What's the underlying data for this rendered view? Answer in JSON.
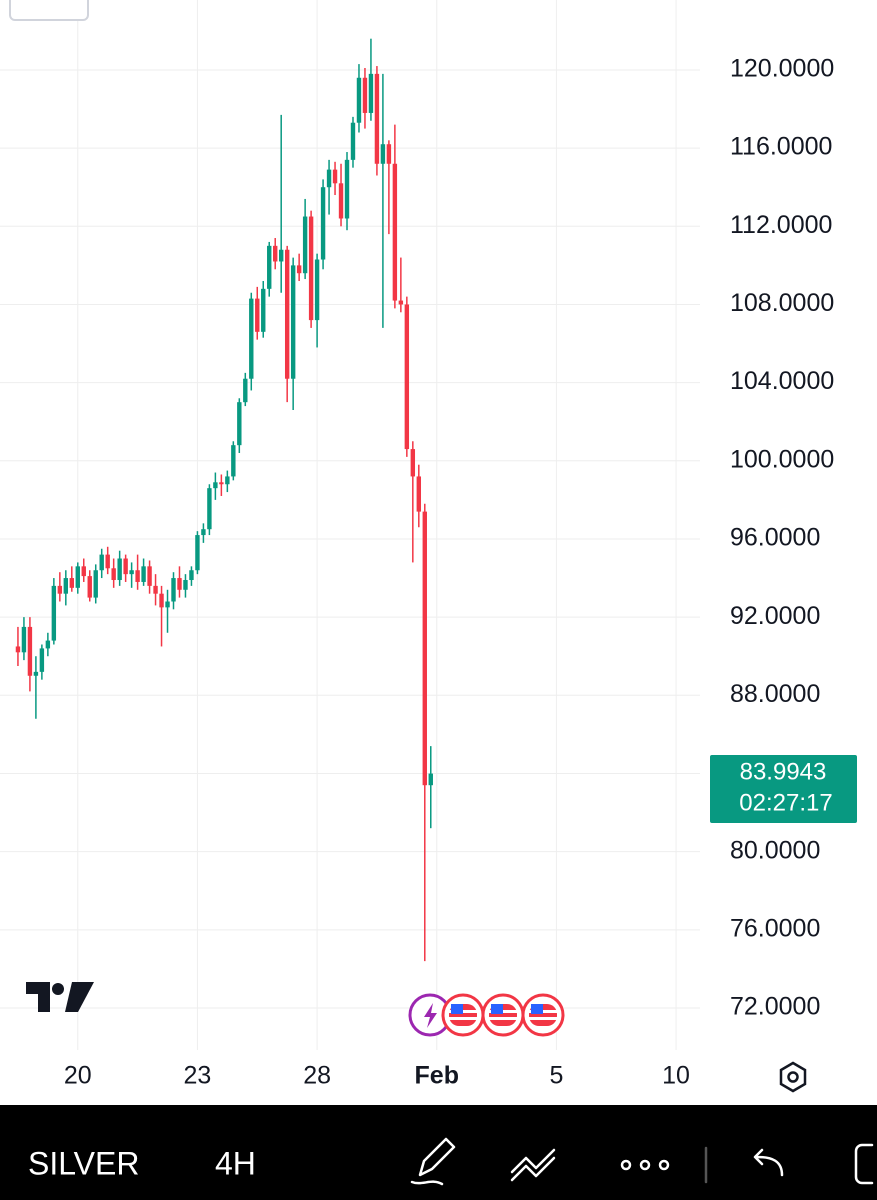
{
  "chart_data": {
    "type": "candlestick",
    "up_color": "#089981",
    "down_color": "#f23645",
    "x": [
      0,
      1,
      2,
      3,
      4,
      5,
      6,
      7,
      8,
      9,
      10,
      11,
      12,
      13,
      14,
      15,
      16,
      17,
      18,
      19,
      20,
      21,
      22,
      23,
      24,
      25,
      26,
      27,
      28,
      29,
      30,
      31,
      32,
      33,
      34,
      35,
      36,
      37,
      38,
      39,
      40,
      41,
      42,
      43,
      44,
      45,
      46,
      47,
      48,
      49,
      50,
      51,
      52,
      53,
      54,
      55,
      56,
      57,
      58,
      59,
      60,
      61,
      62,
      63,
      64,
      65,
      66,
      67,
      68,
      69
    ],
    "open": [
      90.5,
      90.2,
      91.5,
      89,
      89.2,
      90.4,
      90.8,
      93.6,
      93.2,
      94,
      93.5,
      94.6,
      94.1,
      93,
      94.4,
      95.2,
      94.5,
      93.9,
      95,
      94.2,
      94.4,
      93.8,
      94.6,
      93.6,
      93.2,
      92.5,
      92.8,
      94,
      93.4,
      93.9,
      94.4,
      96.2,
      96.5,
      98.6,
      98.9,
      98.8,
      99.2,
      100.8,
      103,
      104.2,
      108.3,
      106.6,
      108.8,
      111,
      110.2,
      110.8,
      104.2,
      110,
      109.6,
      112.5,
      107.2,
      110.3,
      114,
      114.9,
      114.2,
      112.4,
      115.4,
      117.3,
      119.6,
      117.8,
      119.8,
      115.2,
      116.2,
      115.2,
      108.2,
      108,
      100.6,
      99.2,
      97.4,
      83.4
    ],
    "high": [
      91.5,
      92,
      92,
      90,
      90.6,
      91.2,
      94,
      94.3,
      94.4,
      94.6,
      94.8,
      95,
      94.4,
      94.7,
      95.5,
      95.6,
      95,
      95.4,
      95.2,
      94.8,
      95.2,
      95,
      94.9,
      94.2,
      93.6,
      93.4,
      94.3,
      94.6,
      94.2,
      94.6,
      96.4,
      96.8,
      98.8,
      99.4,
      99.3,
      99.5,
      101,
      103.2,
      104.5,
      108.6,
      108.9,
      109.2,
      111.2,
      111.4,
      117.7,
      111,
      110.4,
      110.6,
      113.4,
      112.8,
      110.6,
      114.4,
      115.4,
      115.3,
      115.2,
      115.8,
      117.6,
      120.3,
      120.1,
      121.6,
      120.2,
      119.8,
      116.4,
      117.2,
      110.4,
      108.4,
      101,
      99.8,
      97.8,
      85.4
    ],
    "low": [
      89.5,
      89.8,
      88.2,
      86.8,
      88.8,
      90,
      90.6,
      92.8,
      92.6,
      93.3,
      93.2,
      93.8,
      92.8,
      92.7,
      94,
      94.2,
      93.5,
      93.6,
      93.8,
      93.5,
      93.4,
      93.6,
      93.2,
      92.6,
      90.5,
      91.2,
      92.4,
      93,
      93,
      93.6,
      94.2,
      95.8,
      96.2,
      98,
      98.2,
      98.4,
      99,
      100.4,
      102.8,
      103.6,
      106.2,
      106.3,
      108.4,
      109.8,
      108.6,
      103,
      102.6,
      109.2,
      109.3,
      106.8,
      105.8,
      109.8,
      112.6,
      113.6,
      112,
      111.8,
      115,
      116.8,
      117,
      117.4,
      114.6,
      106.8,
      111.6,
      107.8,
      107.6,
      100.2,
      94.8,
      96.6,
      74.4,
      81.2
    ],
    "close": [
      90.2,
      91.5,
      89,
      89.2,
      90.4,
      90.8,
      93.6,
      93.2,
      94,
      93.5,
      94.6,
      94.1,
      93,
      94.4,
      95.2,
      94.5,
      93.9,
      95,
      94.2,
      94.4,
      93.8,
      94.6,
      93.6,
      93.2,
      92.5,
      92.8,
      94,
      93.4,
      93.9,
      94.4,
      96.2,
      96.5,
      98.6,
      98.9,
      98.8,
      99.2,
      100.8,
      103,
      104.2,
      108.3,
      106.6,
      108.8,
      111,
      110.2,
      110.8,
      104.2,
      110,
      109.6,
      112.5,
      107.2,
      110.3,
      114,
      114.9,
      114.2,
      112.4,
      115.4,
      117.3,
      119.6,
      117.8,
      119.8,
      115.2,
      116.2,
      115.2,
      108.2,
      108,
      100.6,
      99.2,
      97.4,
      83.4,
      83.9943
    ],
    "xlim": [
      -3,
      114
    ],
    "xticks": [
      {
        "value": 10,
        "label": "20"
      },
      {
        "value": 30,
        "label": "23"
      },
      {
        "value": 50,
        "label": "28"
      },
      {
        "value": 70,
        "label": "Feb"
      },
      {
        "value": 90,
        "label": "5"
      },
      {
        "value": 110,
        "label": "10"
      }
    ],
    "ylim": [
      69.85,
      123.58
    ],
    "yticks": [
      {
        "value": 72,
        "label": "72.0000"
      },
      {
        "value": 76,
        "label": "76.0000"
      },
      {
        "value": 80,
        "label": "80.0000"
      },
      {
        "value": 84,
        "label": "84.0000"
      },
      {
        "value": 88,
        "label": "88.0000"
      },
      {
        "value": 92,
        "label": "92.0000"
      },
      {
        "value": 96,
        "label": "96.0000"
      },
      {
        "value": 100,
        "label": "100.0000"
      },
      {
        "value": 104,
        "label": "104.0000"
      },
      {
        "value": 108,
        "label": "108.0000"
      },
      {
        "value": 112,
        "label": "112.0000"
      },
      {
        "value": 116,
        "label": "116.0000"
      },
      {
        "value": 120,
        "label": "120.0000"
      }
    ],
    "hidden_ytick_labels": [
      84
    ],
    "grid": true,
    "last_price": 83.9943,
    "countdown": "02:27:17"
  },
  "toolbar": {
    "symbol": "SILVER",
    "interval": "4H"
  }
}
